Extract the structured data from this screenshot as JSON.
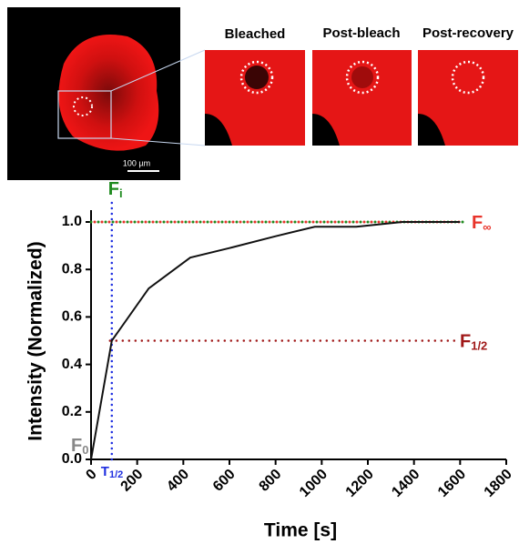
{
  "figure": {
    "panels": [
      "Bleached",
      "Post-bleach",
      "Post-recovery"
    ],
    "scale_bar": "100 µm"
  },
  "chart_data": {
    "type": "line",
    "x": [
      0,
      90,
      250,
      430,
      600,
      800,
      970,
      1150,
      1350,
      1600
    ],
    "series": [
      {
        "color": "#111111",
        "values": [
          0,
          0.5,
          0.72,
          0.85,
          0.89,
          0.94,
          0.98,
          0.98,
          1.0,
          1.0
        ]
      }
    ],
    "xlabel": "Time [s]",
    "ylabel": "Intensity (Normalized)",
    "xlim": [
      0,
      1800
    ],
    "xticks": [
      0,
      200,
      400,
      600,
      800,
      1000,
      1200,
      1400,
      1600,
      1800
    ],
    "ylim": [
      0,
      1.05
    ],
    "yticks": [
      {
        "value": 0,
        "label": "0.0"
      },
      {
        "value": 0.2,
        "label": "0.2"
      },
      {
        "value": 0.4,
        "label": "0.4"
      },
      {
        "value": 0.6,
        "label": "0.6"
      },
      {
        "value": 0.8,
        "label": "0.8"
      },
      {
        "value": 1,
        "label": "1.0"
      }
    ],
    "reference_lines": [
      {
        "axis": "y",
        "value": 1,
        "label": "F",
        "sub": "∞",
        "color": "#e8332a"
      },
      {
        "axis": "y",
        "value": 0.5,
        "label": "F",
        "sub": "1/2",
        "color": "#a01818"
      },
      {
        "axis": "x",
        "value": 90,
        "label": "T",
        "sub": "1/2",
        "color": "#1f2fe0"
      }
    ],
    "annotations": [
      {
        "label": "F",
        "sub": "i",
        "color": "#1e8a1e"
      },
      {
        "label": "F",
        "sub": "0",
        "color": "#888888"
      }
    ]
  }
}
